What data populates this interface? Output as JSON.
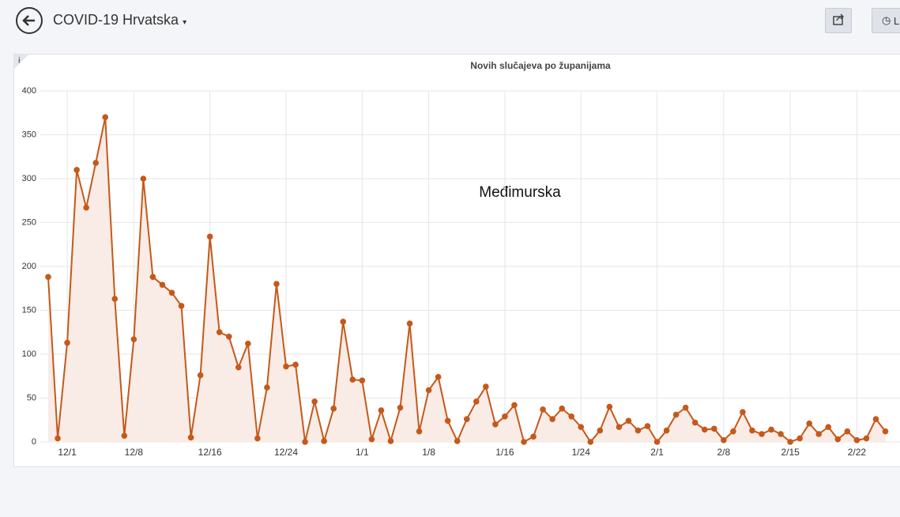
{
  "header": {
    "title": "COVID-19 Hrvatska",
    "button_label": "L"
  },
  "chart_data": {
    "type": "line",
    "title": "Novih slučajeva po županijama",
    "annotation": "Međimurska",
    "color": "#c4591b",
    "fill": "#f9ebe5",
    "categories": [
      null,
      null,
      "12/1",
      null,
      null,
      null,
      null,
      null,
      null,
      "12/8",
      null,
      null,
      null,
      null,
      null,
      null,
      null,
      "12/16",
      null,
      null,
      null,
      null,
      null,
      null,
      null,
      "12/24",
      null,
      null,
      null,
      null,
      null,
      null,
      null,
      "1/1",
      null,
      null,
      null,
      null,
      null,
      null,
      "1/8",
      null,
      null,
      null,
      null,
      null,
      null,
      null,
      "1/16",
      null,
      null,
      null,
      null,
      null,
      null,
      null,
      "1/24",
      null,
      null,
      null,
      null,
      null,
      null,
      null,
      "2/1",
      null,
      null,
      null,
      null,
      null,
      null,
      "2/8",
      null,
      null,
      null,
      null,
      null,
      null,
      "2/15",
      null,
      null,
      null,
      null,
      null,
      null,
      "2/22",
      null,
      null,
      null
    ],
    "values": [
      188,
      4,
      113,
      310,
      267,
      318,
      370,
      163,
      7,
      117,
      300,
      188,
      179,
      170,
      155,
      5,
      76,
      234,
      125,
      120,
      85,
      112,
      4,
      62,
      180,
      86,
      88,
      0,
      46,
      1,
      38,
      137,
      71,
      70,
      3,
      36,
      1,
      39,
      135,
      12,
      59,
      74,
      24,
      1,
      26,
      46,
      63,
      20,
      29,
      42,
      0,
      6,
      37,
      26,
      38,
      29,
      17,
      0,
      13,
      40,
      17,
      24,
      13,
      18,
      0,
      13,
      31,
      39,
      22,
      14,
      15,
      2,
      12,
      34,
      13,
      9,
      14,
      9,
      0,
      4,
      21,
      9,
      17,
      3,
      12,
      2,
      4,
      26,
      12
    ],
    "ylim": [
      0,
      400
    ],
    "yticks": [
      0,
      50,
      100,
      150,
      200,
      250,
      300,
      350,
      400
    ],
    "grid": true
  }
}
